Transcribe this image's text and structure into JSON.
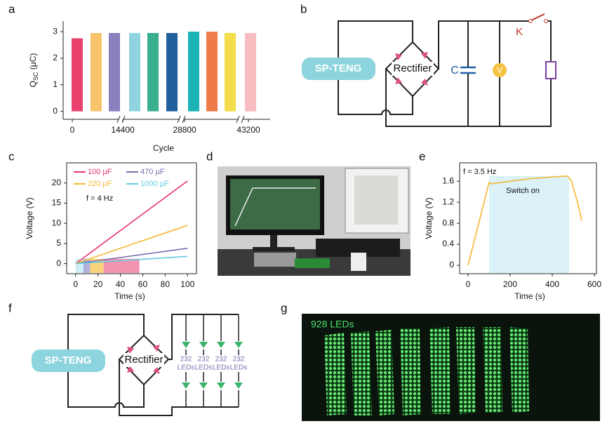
{
  "panel_labels": [
    "a",
    "b",
    "c",
    "d",
    "e",
    "f",
    "g"
  ],
  "chart_data": [
    {
      "type": "bar",
      "xlabel": "Cycle",
      "ylabel": "Q",
      "ylabel_sub": "SC",
      "ylabel_unit": " (μC)",
      "categories": [
        null,
        null,
        null,
        null,
        null,
        null,
        null,
        null,
        null,
        null
      ],
      "values": [
        2.75,
        2.95,
        2.95,
        2.95,
        2.95,
        2.95,
        3.0,
        3.0,
        2.95,
        2.95
      ],
      "colors": [
        "#e8416e",
        "#f7c46b",
        "#8a80bd",
        "#8fd3e0",
        "#3aaf8f",
        "#1f5f9c",
        "#1bb3b5",
        "#ef7a4a",
        "#f3dd4a",
        "#f7bcc0"
      ],
      "ylim": [
        -0.3,
        3.4
      ],
      "yticks": [
        0,
        1,
        2,
        3
      ],
      "xticks": [
        0,
        14400,
        28800,
        43200
      ]
    },
    {
      "type": "line",
      "xlabel": "Time (s)",
      "ylabel": "Voltage (V)",
      "annotation": "f = 4 Hz",
      "x": [
        0,
        100
      ],
      "series": [
        {
          "name": "100 µF",
          "color": "#e8336d",
          "values": [
            0,
            20.5
          ]
        },
        {
          "name": "470 µF",
          "color": "#7b6bb0",
          "values": [
            0,
            3.8
          ]
        },
        {
          "name": "220 µF",
          "color": "#f5b731",
          "values": [
            0,
            9.5
          ]
        },
        {
          "name": "1000 µF",
          "color": "#62cbe0",
          "values": [
            0,
            1.8
          ]
        }
      ],
      "regions": [
        {
          "x": [
            0,
            9
          ],
          "y": 1.2,
          "color": "#bfe9f2"
        },
        {
          "x": [
            7,
            13
          ],
          "y": 1.2,
          "color": "#9f95cc"
        },
        {
          "x": [
            13,
            25
          ],
          "y": 1.2,
          "color": "#f7c450"
        },
        {
          "x": [
            25,
            57
          ],
          "y": 1.2,
          "color": "#ef6f96"
        }
      ],
      "xlim": [
        -8,
        108
      ],
      "ylim": [
        -2.5,
        25
      ],
      "xticks": [
        0,
        20,
        40,
        60,
        80,
        100
      ],
      "yticks": [
        0,
        5,
        10,
        15,
        20
      ]
    },
    {
      "type": "line",
      "xlabel": "Time (s)",
      "ylabel": "Voltage (V)",
      "annotation": "f = 3.5 Hz",
      "region_label": "Switch on",
      "x": [
        0,
        100,
        110,
        200,
        300,
        400,
        470,
        490,
        520,
        540
      ],
      "series": [
        {
          "color": "#f5b731",
          "values": [
            0,
            1.58,
            1.55,
            1.6,
            1.65,
            1.68,
            1.7,
            1.62,
            1.2,
            0.85
          ]
        }
      ],
      "regions": [
        {
          "x": [
            100,
            480
          ],
          "y": 1.7,
          "color": "#cdeef5"
        }
      ],
      "xlim": [
        -40,
        610
      ],
      "ylim": [
        -0.16,
        1.95
      ],
      "xticks": [
        0,
        200,
        400,
        600
      ],
      "yticks": [
        0,
        0.4,
        0.8,
        1.2,
        1.6
      ]
    }
  ],
  "circuit_b": {
    "source": "SP-TENG",
    "bridge": "Rectifier",
    "capacitor": "C",
    "voltmeter": "V",
    "switch": "K"
  },
  "circuit_f": {
    "source": "SP-TENG",
    "bridge": "Rectifier",
    "loads": [
      {
        "count": 232,
        "unit": "LEDs"
      },
      {
        "count": 232,
        "unit": "LEDs"
      },
      {
        "count": 232,
        "unit": "LEDs"
      },
      {
        "count": 232,
        "unit": "LEDs"
      }
    ]
  },
  "photo_g": {
    "caption": "928 LEDs"
  }
}
